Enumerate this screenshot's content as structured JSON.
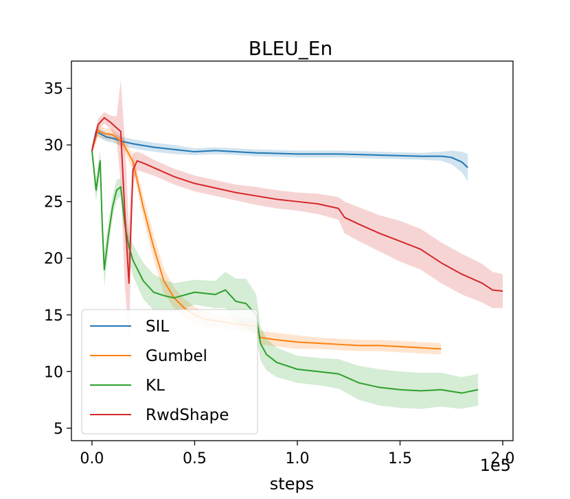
{
  "chart_data": {
    "type": "line",
    "title": "BLEU_En",
    "xlabel": "steps",
    "ylabel": "",
    "x_multiplier_label": "1e5",
    "xlim": [
      -0.1,
      2.05
    ],
    "ylim": [
      3.9,
      37.4
    ],
    "xticks": [
      0.0,
      0.5,
      1.0,
      1.5,
      2.0
    ],
    "xtick_labels": [
      "0.0",
      "0.5",
      "1.0",
      "1.5",
      "2.0"
    ],
    "yticks": [
      5,
      10,
      15,
      20,
      25,
      30,
      35
    ],
    "ytick_labels": [
      "5",
      "10",
      "15",
      "20",
      "25",
      "30",
      "35"
    ],
    "grid": false,
    "legend_position": "lower-left",
    "series": [
      {
        "name": "SIL",
        "color": "#1f77b4",
        "x": [
          0.0,
          0.02,
          0.04,
          0.07,
          0.1,
          0.15,
          0.2,
          0.3,
          0.4,
          0.5,
          0.6,
          0.8,
          1.0,
          1.2,
          1.4,
          1.6,
          1.7,
          1.75,
          1.8,
          1.83
        ],
        "y": [
          29.5,
          31.2,
          31.0,
          30.7,
          30.6,
          30.3,
          30.1,
          29.8,
          29.6,
          29.4,
          29.5,
          29.3,
          29.2,
          29.2,
          29.1,
          29.0,
          29.0,
          28.9,
          28.5,
          28.0
        ],
        "band": [
          0.3,
          0.4,
          0.4,
          0.4,
          0.4,
          0.4,
          0.4,
          0.4,
          0.4,
          0.3,
          0.3,
          0.3,
          0.3,
          0.3,
          0.3,
          0.3,
          0.4,
          0.6,
          0.9,
          1.2
        ]
      },
      {
        "name": "Gumbel",
        "color": "#ff7f0e",
        "x": [
          0.0,
          0.03,
          0.06,
          0.1,
          0.15,
          0.2,
          0.25,
          0.3,
          0.35,
          0.4,
          0.45,
          0.5,
          0.55,
          0.6,
          0.7,
          0.8,
          0.82,
          0.9,
          1.0,
          1.1,
          1.2,
          1.3,
          1.4,
          1.5,
          1.6,
          1.7
        ],
        "y": [
          29.5,
          31.3,
          31.0,
          30.9,
          30.2,
          28.5,
          24.5,
          21.0,
          18.0,
          16.5,
          15.6,
          15.0,
          14.6,
          14.5,
          14.2,
          14.0,
          13.0,
          12.8,
          12.6,
          12.5,
          12.4,
          12.3,
          12.3,
          12.2,
          12.1,
          12.0
        ],
        "band": [
          0.4,
          0.5,
          0.5,
          0.5,
          0.5,
          0.7,
          1.0,
          1.1,
          1.1,
          0.9,
          0.8,
          0.7,
          0.7,
          0.6,
          0.6,
          0.6,
          0.6,
          0.6,
          0.6,
          0.5,
          0.5,
          0.5,
          0.5,
          0.5,
          0.5,
          0.5
        ]
      },
      {
        "name": "KL",
        "color": "#2ca02c",
        "x": [
          0.0,
          0.02,
          0.04,
          0.05,
          0.06,
          0.08,
          0.1,
          0.12,
          0.14,
          0.16,
          0.18,
          0.2,
          0.25,
          0.3,
          0.35,
          0.4,
          0.5,
          0.6,
          0.65,
          0.7,
          0.75,
          0.8,
          0.82,
          0.85,
          0.9,
          1.0,
          1.1,
          1.2,
          1.3,
          1.4,
          1.5,
          1.6,
          1.7,
          1.8,
          1.88
        ],
        "y": [
          29.5,
          26.0,
          28.6,
          23.0,
          19.0,
          22.0,
          24.5,
          26.0,
          26.3,
          23.0,
          21.0,
          19.8,
          18.0,
          17.0,
          16.7,
          16.5,
          17.0,
          16.8,
          17.2,
          16.2,
          16.0,
          15.0,
          12.5,
          11.5,
          10.8,
          10.2,
          10.0,
          9.8,
          9.0,
          8.6,
          8.4,
          8.3,
          8.4,
          8.1,
          8.4
        ],
        "band": [
          0.5,
          1.0,
          1.0,
          1.5,
          1.5,
          1.2,
          1.0,
          0.9,
          0.8,
          1.0,
          1.2,
          1.4,
          1.6,
          1.6,
          1.4,
          1.3,
          1.1,
          1.2,
          1.6,
          2.0,
          2.2,
          1.8,
          1.5,
          1.4,
          1.3,
          1.2,
          1.2,
          1.3,
          1.5,
          1.6,
          1.6,
          1.6,
          1.5,
          1.4,
          1.4
        ]
      },
      {
        "name": "RwdShape",
        "color": "#d62728",
        "x": [
          0.0,
          0.03,
          0.06,
          0.09,
          0.12,
          0.14,
          0.16,
          0.18,
          0.19,
          0.2,
          0.22,
          0.25,
          0.3,
          0.4,
          0.5,
          0.6,
          0.7,
          0.8,
          0.9,
          1.0,
          1.1,
          1.2,
          1.23,
          1.3,
          1.4,
          1.5,
          1.6,
          1.7,
          1.8,
          1.9,
          1.95,
          2.0
        ],
        "y": [
          29.5,
          31.8,
          32.4,
          32.0,
          31.5,
          31.2,
          24.0,
          17.8,
          23.0,
          27.8,
          28.6,
          28.4,
          28.0,
          27.2,
          26.6,
          26.2,
          25.8,
          25.5,
          25.2,
          25.0,
          24.8,
          24.4,
          23.6,
          23.0,
          22.2,
          21.5,
          20.8,
          19.6,
          18.6,
          17.8,
          17.2,
          17.1
        ],
        "band": [
          0.4,
          0.5,
          0.5,
          0.6,
          1.0,
          4.5,
          6.5,
          5.0,
          3.5,
          1.5,
          0.8,
          0.8,
          0.7,
          0.7,
          0.7,
          0.7,
          0.7,
          0.8,
          0.8,
          0.8,
          0.9,
          1.0,
          1.4,
          1.5,
          1.6,
          1.8,
          1.8,
          1.8,
          1.8,
          1.7,
          1.6,
          1.5
        ]
      }
    ]
  }
}
